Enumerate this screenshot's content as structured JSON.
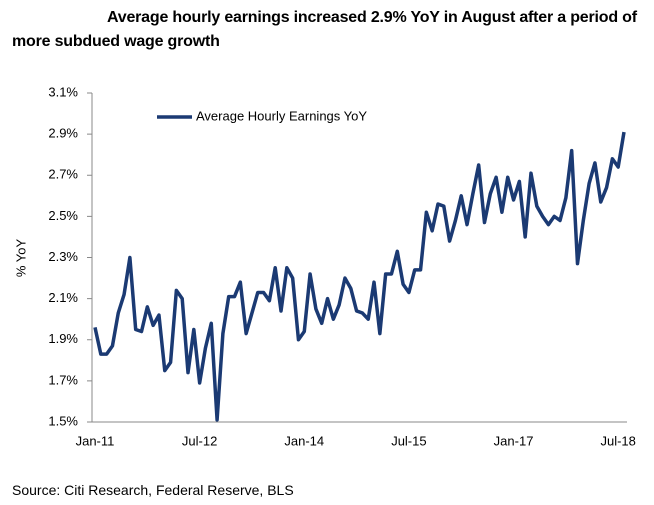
{
  "chart_data": {
    "type": "line",
    "title": "Average hourly earnings increased 2.9% YoY in August after a period of more subdued wage growth",
    "y_label": "% YoY",
    "source": "Source: Citi Research, Federal Reserve, BLS",
    "categories": [
      "Jan-11",
      null,
      null,
      null,
      null,
      null,
      null,
      null,
      null,
      null,
      null,
      null,
      null,
      null,
      null,
      null,
      null,
      null,
      "Jul-12",
      null,
      null,
      null,
      null,
      null,
      null,
      null,
      null,
      null,
      null,
      null,
      null,
      null,
      null,
      null,
      null,
      null,
      "Jan-14",
      null,
      null,
      null,
      null,
      null,
      null,
      null,
      null,
      null,
      null,
      null,
      null,
      null,
      null,
      null,
      null,
      null,
      "Jul-15",
      null,
      null,
      null,
      null,
      null,
      null,
      null,
      null,
      null,
      null,
      null,
      null,
      null,
      null,
      null,
      null,
      null,
      "Jan-17",
      null,
      null,
      null,
      null,
      null,
      null,
      null,
      null,
      null,
      null,
      null,
      null,
      null,
      null,
      null,
      null,
      null,
      "Jul-18",
      null
    ],
    "series": [
      {
        "name": "Average Hourly Earnings YoY",
        "color": "#1b3a73",
        "values": [
          1.96,
          1.83,
          1.83,
          1.87,
          2.03,
          2.12,
          2.3,
          1.95,
          1.94,
          2.06,
          1.97,
          2.02,
          1.75,
          1.79,
          2.14,
          2.1,
          1.74,
          1.95,
          1.69,
          1.86,
          1.98,
          1.51,
          1.93,
          2.11,
          2.11,
          2.18,
          1.93,
          2.03,
          2.13,
          2.13,
          2.09,
          2.25,
          2.04,
          2.25,
          2.2,
          1.9,
          1.94,
          2.22,
          2.05,
          1.98,
          2.1,
          2.0,
          2.07,
          2.2,
          2.15,
          2.04,
          2.03,
          2.0,
          2.18,
          1.93,
          2.22,
          2.22,
          2.33,
          2.17,
          2.13,
          2.24,
          2.24,
          2.52,
          2.43,
          2.56,
          2.55,
          2.38,
          2.48,
          2.6,
          2.46,
          2.61,
          2.75,
          2.47,
          2.61,
          2.69,
          2.52,
          2.69,
          2.58,
          2.67,
          2.4,
          2.71,
          2.55,
          2.5,
          2.46,
          2.5,
          2.48,
          2.59,
          2.82,
          2.27,
          2.48,
          2.66,
          2.76,
          2.57,
          2.64,
          2.78,
          2.74,
          2.91
        ]
      }
    ],
    "ylim": [
      1.5,
      3.1
    ],
    "yticks": [
      {
        "value": 1.5,
        "label": "1.5%"
      },
      {
        "value": 1.7,
        "label": "1.7%"
      },
      {
        "value": 1.9,
        "label": "1.9%"
      },
      {
        "value": 2.1,
        "label": "2.1%"
      },
      {
        "value": 2.3,
        "label": "2.3%"
      },
      {
        "value": 2.5,
        "label": "2.5%"
      },
      {
        "value": 2.7,
        "label": "2.7%"
      },
      {
        "value": 2.9,
        "label": "2.9%"
      },
      {
        "value": 3.1,
        "label": "3.1%"
      }
    ],
    "grid": false,
    "legend": "top-left"
  }
}
